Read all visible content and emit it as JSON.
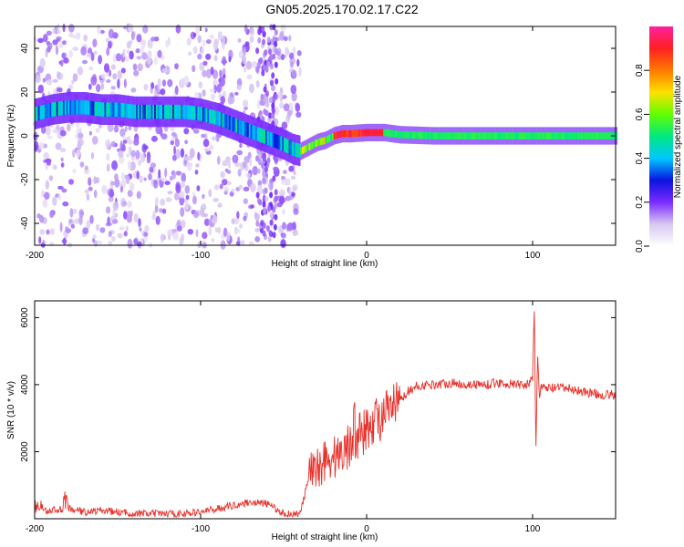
{
  "title": "GN05.2025.170.02.17.C22",
  "colors": {
    "snr_line": "#e8302a",
    "colorbar_stops": [
      "#ffffff",
      "#d8c8f0",
      "#7a2bff",
      "#0a14e0",
      "#00c8ff",
      "#00e880",
      "#60ff00",
      "#ffe000",
      "#ff7a00",
      "#ff2020",
      "#ff20a0"
    ]
  },
  "chart_data": [
    {
      "type": "heatmap",
      "xlabel": "Height of straight line (km)",
      "ylabel": "Frequency (Hz)",
      "xlim": [
        -200,
        150
      ],
      "ylim": [
        -50,
        50
      ],
      "xticks": [
        -200,
        -100,
        0,
        100
      ],
      "yticks": [
        -40,
        -20,
        0,
        20,
        40
      ],
      "xticklabels": [
        "-200",
        "-100",
        "0",
        "100"
      ],
      "yticklabels": [
        "-40",
        "-20",
        "0",
        "20",
        "40"
      ],
      "ridge": {
        "x": [
          -200,
          -190,
          -180,
          -170,
          -160,
          -150,
          -140,
          -130,
          -120,
          -110,
          -100,
          -90,
          -80,
          -70,
          -60,
          -50,
          -45,
          -40,
          -35,
          -30,
          -25,
          -20,
          -15,
          -10,
          0,
          10,
          20,
          40,
          60,
          80,
          95,
          100,
          110,
          130,
          150
        ],
        "y": [
          10,
          12,
          13,
          13,
          12,
          12,
          11,
          11,
          11,
          11,
          10,
          8,
          5,
          2,
          -1,
          -4,
          -6,
          -7,
          -5,
          -3,
          -2,
          0,
          1,
          1,
          1.5,
          1.5,
          0.5,
          0,
          0,
          0,
          0,
          0,
          0,
          0,
          0
        ]
      },
      "colorbar": {
        "label": "Normalized spectral amplitude",
        "range": [
          0,
          1
        ],
        "ticks": [
          0.0,
          0.2,
          0.4,
          0.6,
          0.8
        ],
        "ticklabels": [
          "0.0",
          "0.2",
          "0.4",
          "0.6",
          "0.8"
        ]
      }
    },
    {
      "type": "line",
      "xlabel": "Height of straight line (km)",
      "ylabel": "SNR (10 * v/v)",
      "xlim": [
        -200,
        150
      ],
      "ylim": [
        0,
        6500
      ],
      "xticks": [
        -200,
        -100,
        0,
        100
      ],
      "yticks": [
        2000,
        4000,
        6000
      ],
      "xticklabels": [
        "-200",
        "-100",
        "0",
        "100"
      ],
      "yticklabels": [
        "2000",
        "4000",
        "6000"
      ],
      "series": [
        {
          "x": [
            -200,
            -190,
            -180,
            -170,
            -160,
            -150,
            -140,
            -130,
            -120,
            -110,
            -100,
            -90,
            -80,
            -70,
            -60,
            -55,
            -50,
            -45,
            -40,
            -35,
            -30,
            -25,
            -20,
            -15,
            -10,
            -5,
            0,
            5,
            10,
            15,
            20,
            25,
            30,
            40,
            50,
            60,
            70,
            80,
            90,
            95,
            100,
            101,
            102,
            103,
            104,
            105,
            110,
            120,
            130,
            140,
            150
          ],
          "y": [
            200,
            250,
            300,
            200,
            250,
            200,
            150,
            150,
            150,
            150,
            200,
            300,
            400,
            500,
            450,
            300,
            150,
            150,
            150,
            1200,
            1500,
            1800,
            1800,
            2000,
            2200,
            2500,
            2600,
            3000,
            3000,
            3300,
            3500,
            3800,
            3950,
            4000,
            4050,
            4000,
            4000,
            4050,
            4000,
            4000,
            4100,
            6300,
            2000,
            5000,
            3600,
            3900,
            3900,
            3900,
            3800,
            3700,
            3700
          ]
        }
      ]
    }
  ]
}
